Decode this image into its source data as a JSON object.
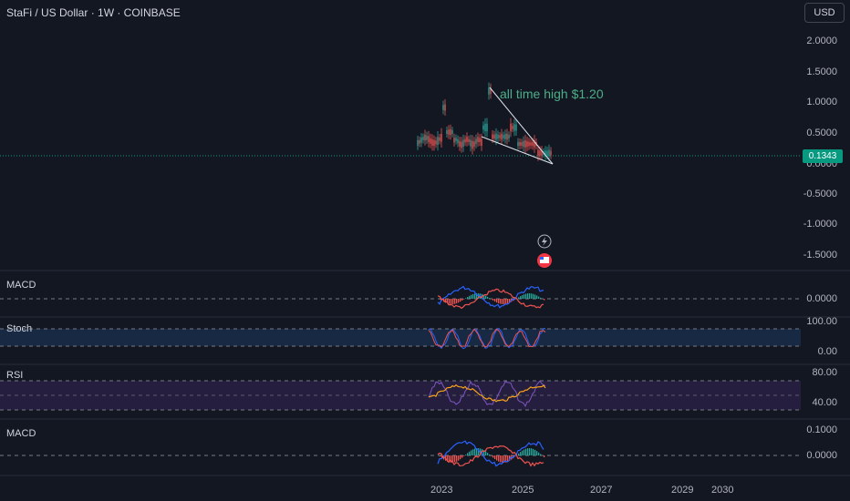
{
  "header": {
    "symbol_title": "StaFi / US Dollar · 1W · COINBASE",
    "currency_button": "USD"
  },
  "main_pane": {
    "y_axis_labels": [
      "2.0000",
      "1.5000",
      "1.0000",
      "0.5000",
      "0.0000",
      "-0.5000",
      "-1.0000",
      "-1.5000"
    ],
    "current_price": "0.1343",
    "annotation": "all time high $1.20",
    "price_line_color": "#089981"
  },
  "panes": {
    "macd1": {
      "label": "MACD",
      "y_labels": [
        "0.0000"
      ]
    },
    "stoch": {
      "label": "Stoch",
      "y_labels": [
        "100.00",
        "0.00"
      ]
    },
    "rsi": {
      "label": "RSI",
      "y_labels": [
        "80.00",
        "40.00"
      ]
    },
    "macd2": {
      "label": "MACD",
      "y_labels": [
        "0.1000",
        "0.0000"
      ]
    }
  },
  "x_axis": {
    "labels": [
      "2023",
      "2025",
      "2027",
      "2029",
      "2030"
    ]
  },
  "icons": [
    "lightning-icon",
    "flag-icon"
  ],
  "colors": {
    "background": "#131722",
    "up": "#26a69a",
    "down": "#ef5350",
    "annotation": "#4caf88"
  }
}
